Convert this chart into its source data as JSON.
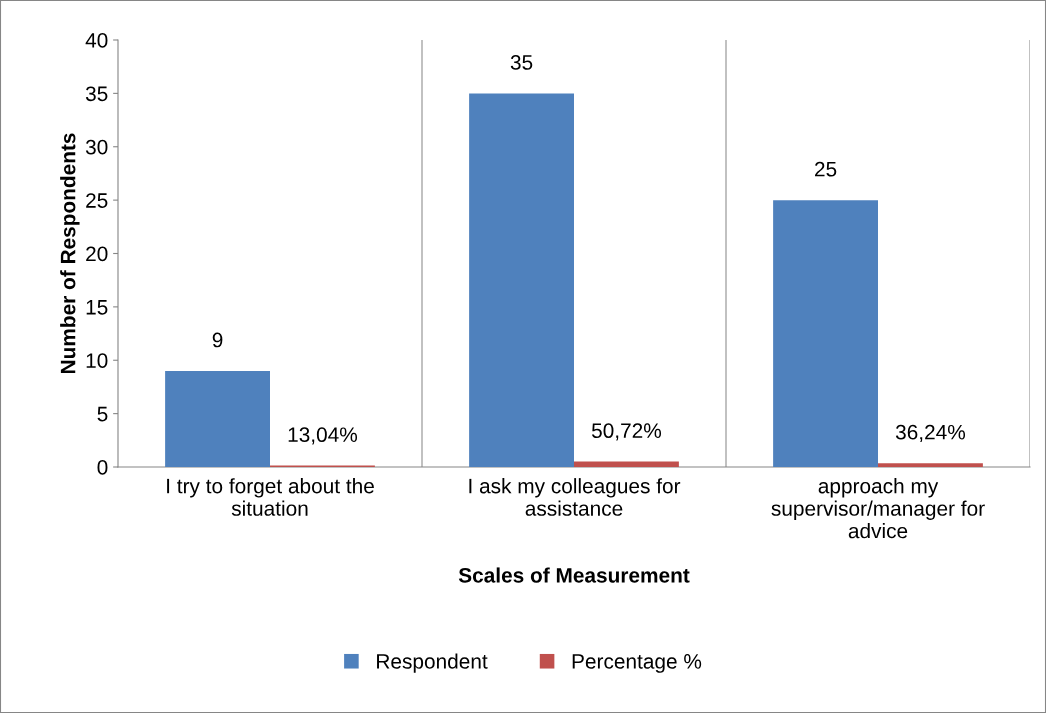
{
  "chart_data": {
    "type": "bar",
    "xlabel": "Scales of Measurement",
    "ylabel": "Number of Respondents",
    "categories": [
      "I try to forget about the\nsituation",
      "I ask my colleagues for\nassistance",
      "approach my\nsupervisor/manager for\nadvice"
    ],
    "series": [
      {
        "name": "Respondent",
        "color": "#4f81bd",
        "values": [
          9,
          35,
          25
        ],
        "value_labels": [
          "9",
          "35",
          "25"
        ]
      },
      {
        "name": "Percentage %",
        "color": "#c0504d",
        "values": [
          0.1304,
          0.5072,
          0.3624
        ],
        "value_labels": [
          "13,04%",
          "50,72%",
          "36,24%"
        ]
      }
    ],
    "ylim": [
      0,
      40
    ],
    "yticks": [
      0,
      5,
      10,
      15,
      20,
      25,
      30,
      35,
      40
    ],
    "grid": "x",
    "legend": "bottom"
  }
}
